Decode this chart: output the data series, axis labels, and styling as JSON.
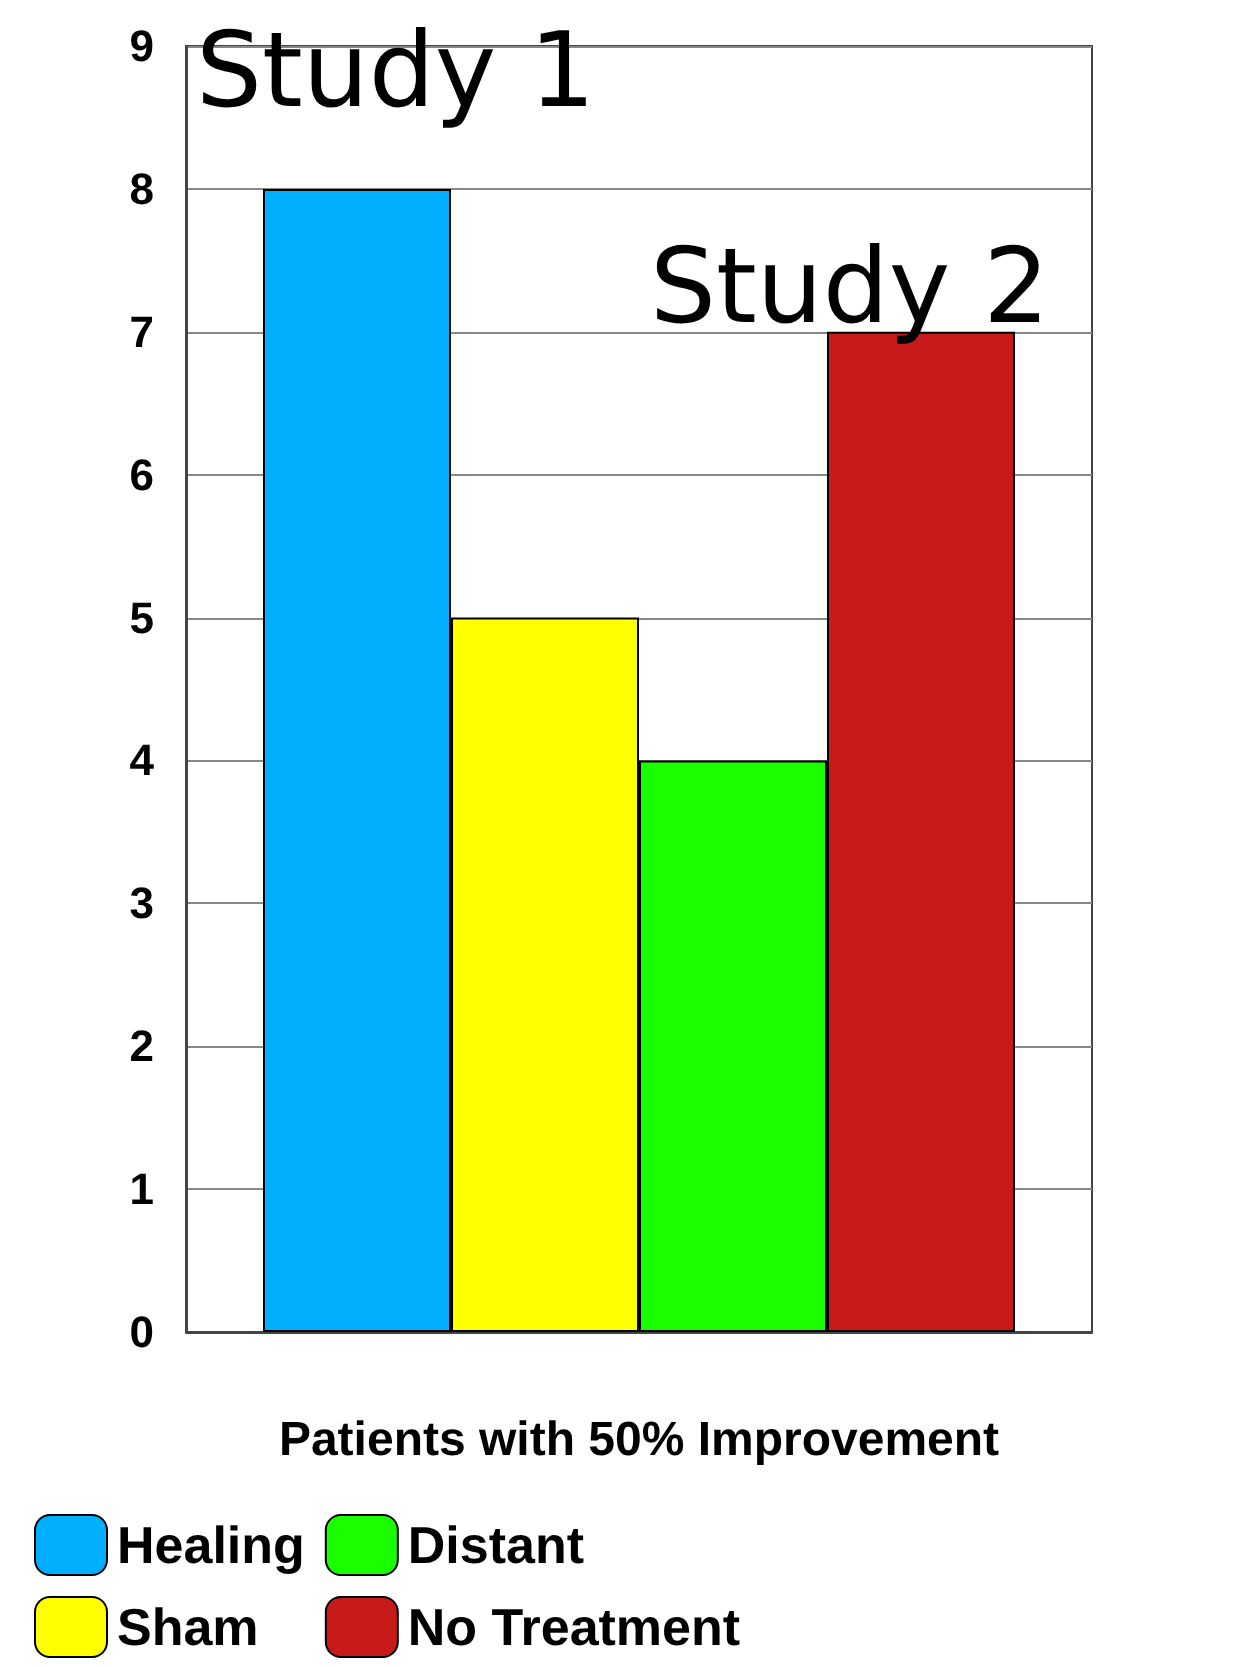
{
  "chart_data": {
    "type": "bar",
    "xlabel": "Patients with 50% Improvement",
    "categories": [
      null
    ],
    "series": [
      {
        "name": "Healing",
        "color": "#00b0ff",
        "values": [
          8
        ]
      },
      {
        "name": "Sham",
        "color": "#ffff00",
        "values": [
          5
        ]
      },
      {
        "name": "Distant",
        "color": "#1aff00",
        "values": [
          4
        ]
      },
      {
        "name": "No Treatment",
        "color": "#c81a1a",
        "values": [
          7
        ]
      }
    ],
    "ylim": [
      0,
      9
    ],
    "yticks": [
      0,
      1,
      2,
      3,
      4,
      5,
      6,
      7,
      8,
      9
    ],
    "grid": "y",
    "legend": "bottom",
    "annotations": [
      "Study 1",
      "Study 2"
    ]
  }
}
